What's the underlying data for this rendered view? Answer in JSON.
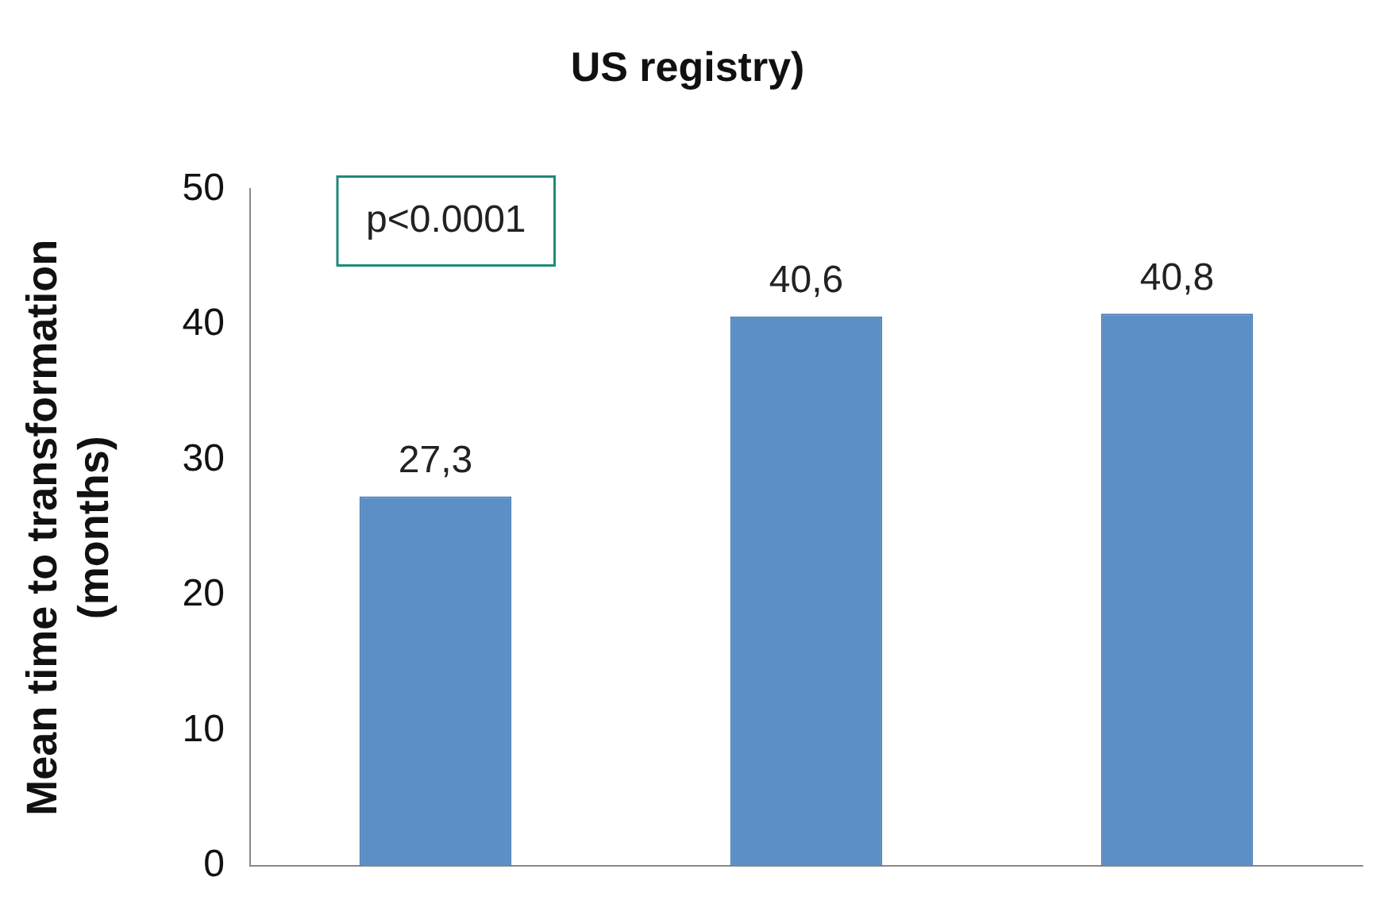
{
  "chart_data": {
    "type": "bar",
    "title": "US registry)",
    "ylabel": "Mean time to transformation\n(months)",
    "categories": [
      null,
      null,
      null
    ],
    "values": [
      27.3,
      40.6,
      40.8
    ],
    "value_labels": [
      "27,3",
      "40,6",
      "40,8"
    ],
    "color": "#5b8fc6",
    "ylim": [
      0,
      50
    ],
    "yticks": [
      0,
      10,
      20,
      30,
      40,
      50
    ],
    "grid": false,
    "legend": false,
    "annotations": [
      "p<0.0001"
    ]
  }
}
